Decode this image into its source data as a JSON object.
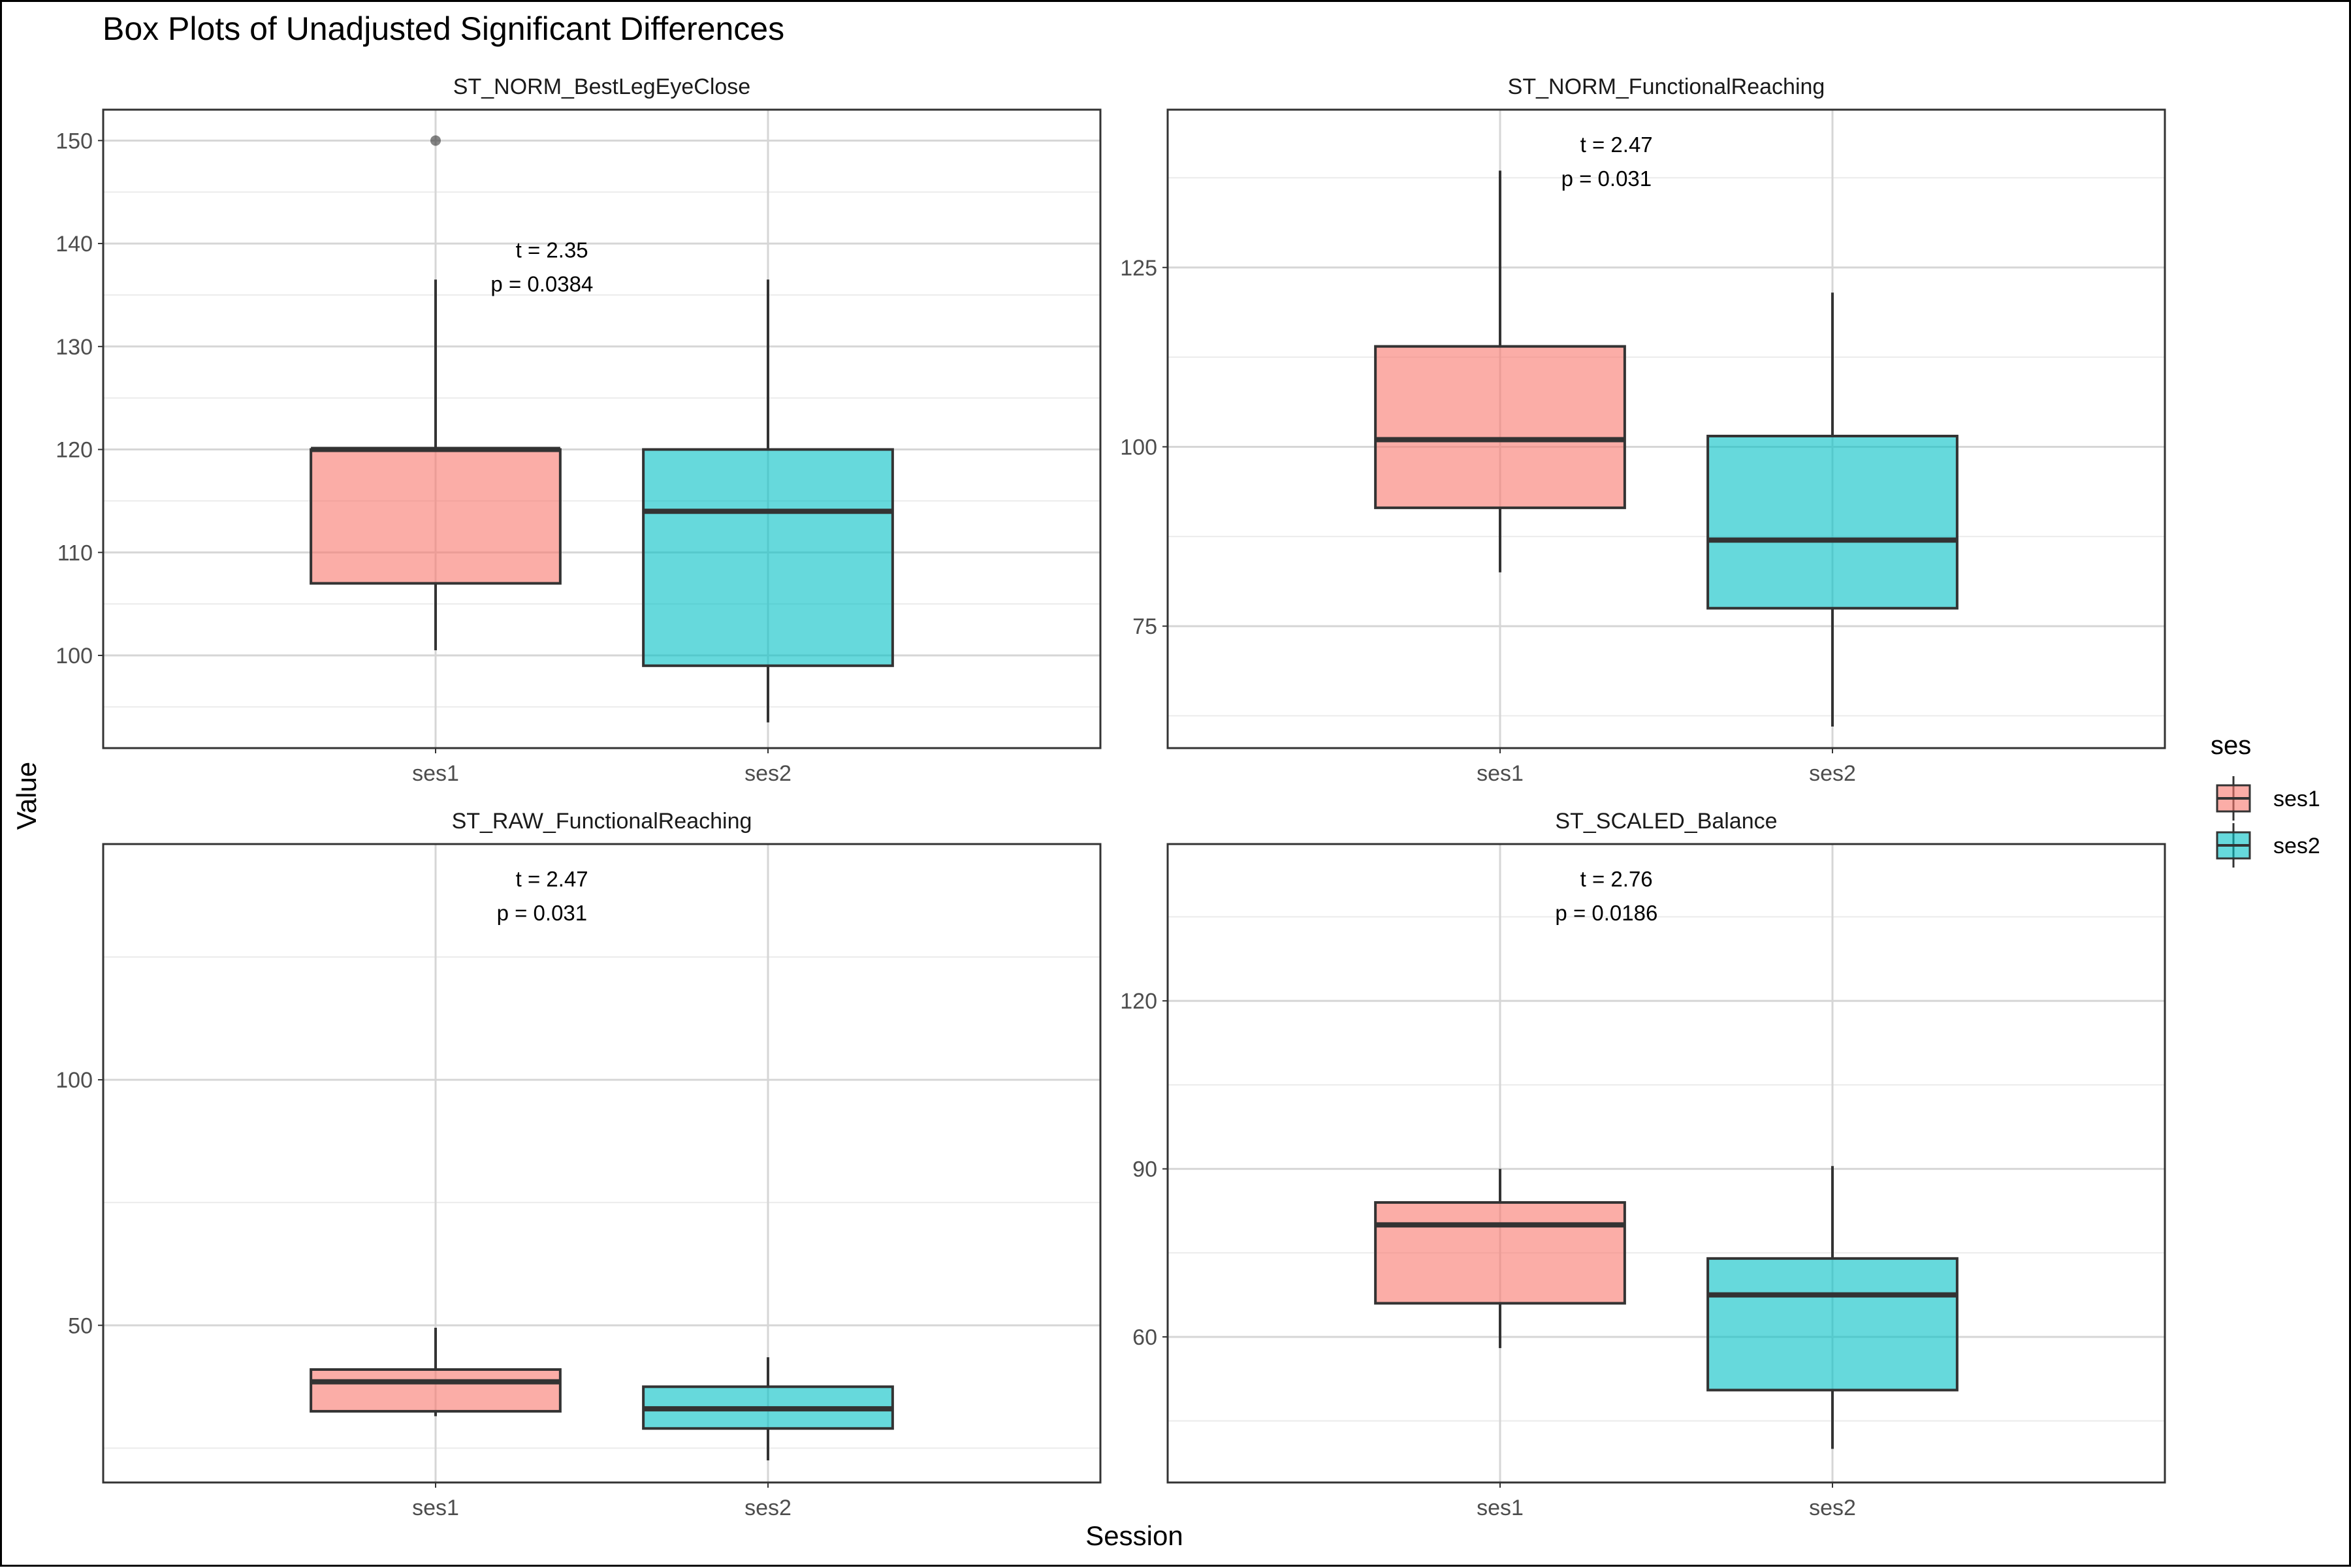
{
  "chart_data": {
    "type": "box",
    "title": "Box Plots of Unadjusted Significant Differences",
    "xlabel": "Session",
    "ylabel": "Value",
    "categories": [
      "ses1",
      "ses2"
    ],
    "colors": {
      "ses1": "#F8766D",
      "ses2": "#00BFC4"
    },
    "legend": {
      "title": "ses",
      "position": "right",
      "entries": [
        "ses1",
        "ses2"
      ]
    },
    "grid": true,
    "panels": [
      {
        "name": "ST_NORM_BestLegEyeClose",
        "ylim": [
          91,
          153
        ],
        "yticks": [
          100,
          110,
          120,
          130,
          140,
          150
        ],
        "boxes": [
          {
            "category": "ses1",
            "low": 100.5,
            "q1": 107,
            "median": 120,
            "q3": 120,
            "high": 136.5,
            "outliers": [
              150
            ]
          },
          {
            "category": "ses2",
            "low": 93.5,
            "q1": 99,
            "median": 114,
            "q3": 120,
            "high": 136.5,
            "outliers": []
          }
        ],
        "annotation": {
          "t": "t = 2.35",
          "p": "p = 0.0384"
        }
      },
      {
        "name": "ST_NORM_FunctionalReaching",
        "ylim": [
          58,
          147
        ],
        "yticks": [
          75,
          100,
          125
        ],
        "boxes": [
          {
            "category": "ses1",
            "low": 82.5,
            "q1": 91.5,
            "median": 101,
            "q3": 114,
            "high": 138.5,
            "outliers": []
          },
          {
            "category": "ses2",
            "low": 61,
            "q1": 77.5,
            "median": 87,
            "q3": 101.5,
            "high": 121.5,
            "outliers": []
          }
        ],
        "annotation": {
          "t": "t = 2.47",
          "p": "p = 0.031"
        }
      },
      {
        "name": "ST_RAW_FunctionalReaching",
        "ylim": [
          18,
          148
        ],
        "yticks": [
          50,
          100
        ],
        "boxes": [
          {
            "category": "ses1",
            "low": 31.5,
            "q1": 32.5,
            "median": 38.5,
            "q3": 41,
            "high": 49.5,
            "outliers": []
          },
          {
            "category": "ses2",
            "low": 22.5,
            "q1": 29,
            "median": 33,
            "q3": 37.5,
            "high": 43.5,
            "outliers": []
          }
        ],
        "annotation": {
          "t": "t = 2.47",
          "p": "p = 0.031"
        }
      },
      {
        "name": "ST_SCALED_Balance",
        "ylim": [
          34,
          148
        ],
        "yticks": [
          60,
          90,
          120
        ],
        "boxes": [
          {
            "category": "ses1",
            "low": 58,
            "q1": 66,
            "median": 80,
            "q3": 84,
            "high": 90,
            "outliers": []
          },
          {
            "category": "ses2",
            "low": 40,
            "q1": 50.5,
            "median": 67.5,
            "q3": 74,
            "high": 90.5,
            "outliers": []
          }
        ],
        "annotation": {
          "t": "t = 2.76",
          "p": "p = 0.0186"
        }
      }
    ]
  }
}
